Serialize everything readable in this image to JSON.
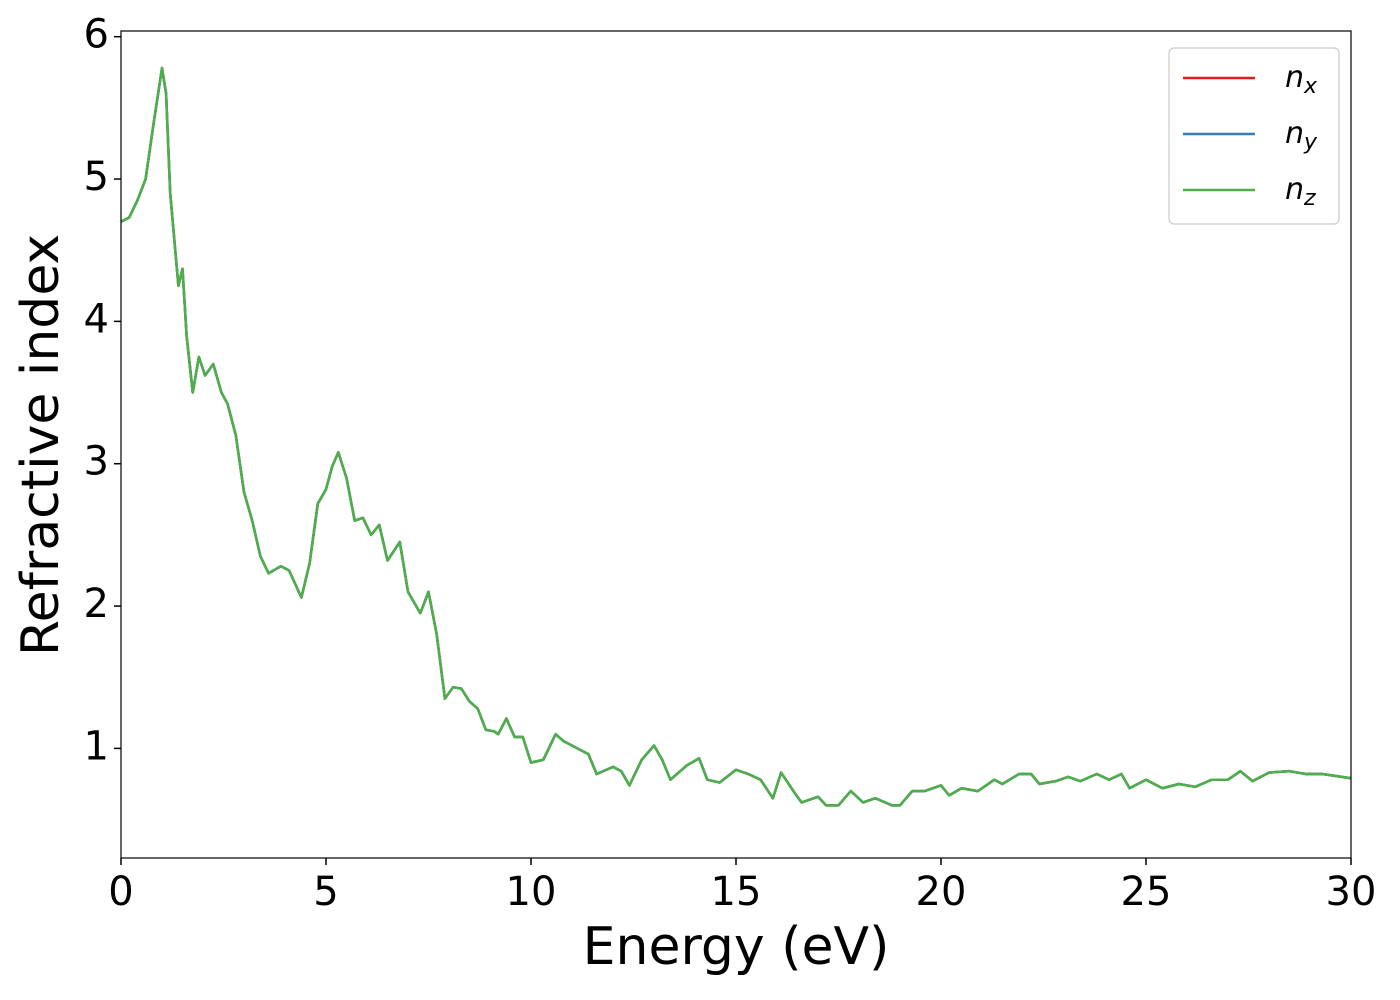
{
  "chart_data": {
    "type": "line",
    "xlabel": "Energy (eV)",
    "ylabel": "Refractive index",
    "x": [
      0,
      0.2,
      0.4,
      0.6,
      0.8,
      1.0,
      1.1,
      1.2,
      1.4,
      1.5,
      1.6,
      1.75,
      1.9,
      2.05,
      2.25,
      2.45,
      2.6,
      2.8,
      3.0,
      3.2,
      3.4,
      3.6,
      3.9,
      4.1,
      4.4,
      4.6,
      4.8,
      5.0,
      5.15,
      5.3,
      5.5,
      5.7,
      5.9,
      6.1,
      6.3,
      6.5,
      6.8,
      7.0,
      7.3,
      7.5,
      7.7,
      7.9,
      8.1,
      8.3,
      8.5,
      8.7,
      8.9,
      9.1,
      9.2,
      9.4,
      9.6,
      9.8,
      10.0,
      10.3,
      10.6,
      10.8,
      11.0,
      11.4,
      11.6,
      12.0,
      12.2,
      12.4,
      12.7,
      13.0,
      13.2,
      13.4,
      13.8,
      14.1,
      14.3,
      14.6,
      15.0,
      15.3,
      15.6,
      15.9,
      16.1,
      16.4,
      16.6,
      17.0,
      17.2,
      17.5,
      17.8,
      18.1,
      18.4,
      18.8,
      19.0,
      19.3,
      19.6,
      20.0,
      20.2,
      20.5,
      20.9,
      21.3,
      21.5,
      21.9,
      22.2,
      22.4,
      22.8,
      23.1,
      23.4,
      23.8,
      24.1,
      24.4,
      24.6,
      25.0,
      25.4,
      25.8,
      26.2,
      26.6,
      27.0,
      27.3,
      27.6,
      28.0,
      28.5,
      28.9,
      29.3,
      30.0
    ],
    "series": [
      {
        "name": "nx",
        "color": "#e41a1c",
        "values": [
          4.7,
          4.73,
          4.85,
          5.0,
          5.4,
          5.78,
          5.6,
          4.9,
          4.25,
          4.37,
          3.9,
          3.5,
          3.75,
          3.62,
          3.7,
          3.5,
          3.42,
          3.2,
          2.8,
          2.6,
          2.35,
          2.23,
          2.28,
          2.25,
          2.06,
          2.3,
          2.72,
          2.82,
          2.98,
          3.08,
          2.9,
          2.6,
          2.62,
          2.5,
          2.57,
          2.32,
          2.45,
          2.1,
          1.95,
          2.1,
          1.8,
          1.35,
          1.43,
          1.42,
          1.33,
          1.28,
          1.13,
          1.12,
          1.1,
          1.21,
          1.08,
          1.08,
          0.9,
          0.92,
          1.1,
          1.05,
          1.02,
          0.96,
          0.82,
          0.87,
          0.84,
          0.74,
          0.92,
          1.02,
          0.92,
          0.78,
          0.88,
          0.93,
          0.78,
          0.76,
          0.85,
          0.82,
          0.78,
          0.65,
          0.83,
          0.7,
          0.62,
          0.66,
          0.6,
          0.6,
          0.7,
          0.62,
          0.65,
          0.6,
          0.6,
          0.7,
          0.7,
          0.74,
          0.67,
          0.72,
          0.7,
          0.78,
          0.75,
          0.82,
          0.82,
          0.75,
          0.77,
          0.8,
          0.77,
          0.82,
          0.78,
          0.82,
          0.72,
          0.78,
          0.72,
          0.75,
          0.73,
          0.78,
          0.78,
          0.84,
          0.77,
          0.83,
          0.84,
          0.82,
          0.82,
          0.79
        ]
      },
      {
        "name": "ny",
        "color": "#377eb8",
        "values": [
          4.7,
          4.73,
          4.85,
          5.0,
          5.4,
          5.78,
          5.6,
          4.9,
          4.25,
          4.37,
          3.9,
          3.5,
          3.75,
          3.62,
          3.7,
          3.5,
          3.42,
          3.2,
          2.8,
          2.6,
          2.35,
          2.23,
          2.28,
          2.25,
          2.06,
          2.3,
          2.72,
          2.82,
          2.98,
          3.08,
          2.9,
          2.6,
          2.62,
          2.5,
          2.57,
          2.32,
          2.45,
          2.1,
          1.95,
          2.1,
          1.8,
          1.35,
          1.43,
          1.42,
          1.33,
          1.28,
          1.13,
          1.12,
          1.1,
          1.21,
          1.08,
          1.08,
          0.9,
          0.92,
          1.1,
          1.05,
          1.02,
          0.96,
          0.82,
          0.87,
          0.84,
          0.74,
          0.92,
          1.02,
          0.92,
          0.78,
          0.88,
          0.93,
          0.78,
          0.76,
          0.85,
          0.82,
          0.78,
          0.65,
          0.83,
          0.7,
          0.62,
          0.66,
          0.6,
          0.6,
          0.7,
          0.62,
          0.65,
          0.6,
          0.6,
          0.7,
          0.7,
          0.74,
          0.67,
          0.72,
          0.7,
          0.78,
          0.75,
          0.82,
          0.82,
          0.75,
          0.77,
          0.8,
          0.77,
          0.82,
          0.78,
          0.82,
          0.72,
          0.78,
          0.72,
          0.75,
          0.73,
          0.78,
          0.78,
          0.84,
          0.77,
          0.83,
          0.84,
          0.82,
          0.82,
          0.79
        ]
      },
      {
        "name": "nz",
        "color": "#4daf4a",
        "values": [
          4.7,
          4.73,
          4.85,
          5.0,
          5.4,
          5.78,
          5.6,
          4.9,
          4.25,
          4.37,
          3.9,
          3.5,
          3.75,
          3.62,
          3.7,
          3.5,
          3.42,
          3.2,
          2.8,
          2.6,
          2.35,
          2.23,
          2.28,
          2.25,
          2.06,
          2.3,
          2.72,
          2.82,
          2.98,
          3.08,
          2.9,
          2.6,
          2.62,
          2.5,
          2.57,
          2.32,
          2.45,
          2.1,
          1.95,
          2.1,
          1.8,
          1.35,
          1.43,
          1.42,
          1.33,
          1.28,
          1.13,
          1.12,
          1.1,
          1.21,
          1.08,
          1.08,
          0.9,
          0.92,
          1.1,
          1.05,
          1.02,
          0.96,
          0.82,
          0.87,
          0.84,
          0.74,
          0.92,
          1.02,
          0.92,
          0.78,
          0.88,
          0.93,
          0.78,
          0.76,
          0.85,
          0.82,
          0.78,
          0.65,
          0.83,
          0.7,
          0.62,
          0.66,
          0.6,
          0.6,
          0.7,
          0.62,
          0.65,
          0.6,
          0.6,
          0.7,
          0.7,
          0.74,
          0.67,
          0.72,
          0.7,
          0.78,
          0.75,
          0.82,
          0.82,
          0.75,
          0.77,
          0.8,
          0.77,
          0.82,
          0.78,
          0.82,
          0.72,
          0.78,
          0.72,
          0.75,
          0.73,
          0.78,
          0.78,
          0.84,
          0.77,
          0.83,
          0.84,
          0.82,
          0.82,
          0.79
        ]
      }
    ],
    "xlim": [
      0,
      30
    ],
    "xticks": [
      0,
      5,
      10,
      15,
      20,
      25,
      30
    ],
    "ylim": [
      0.23,
      6.04
    ],
    "yticks": [
      1,
      2,
      3,
      4,
      5,
      6
    ],
    "grid": false,
    "legend": "upper right"
  }
}
